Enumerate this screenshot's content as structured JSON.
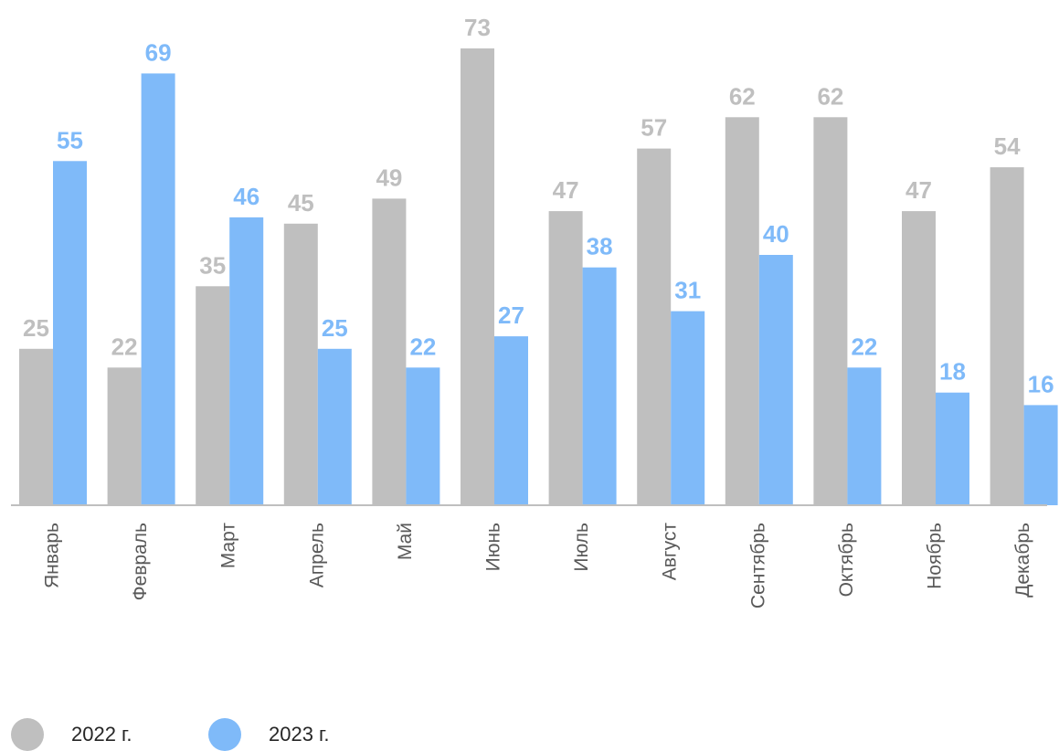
{
  "chart_data": {
    "type": "bar",
    "categories": [
      "Январь",
      "Февраль",
      "Март",
      "Апрель",
      "Май",
      "Июнь",
      "Июль",
      "Август",
      "Сентябрь",
      "Октябрь",
      "Ноябрь",
      "Декабрь"
    ],
    "series": [
      {
        "name": "2022 г.",
        "color": "#bfbfbf",
        "values": [
          25,
          22,
          35,
          45,
          49,
          73,
          47,
          57,
          62,
          62,
          47,
          54
        ]
      },
      {
        "name": "2023 г.",
        "color": "#7fbaf9",
        "values": [
          55,
          69,
          46,
          25,
          22,
          27,
          38,
          31,
          40,
          22,
          18,
          16
        ]
      }
    ],
    "ylim": [
      0,
      80
    ],
    "grid": false,
    "legend_position": "bottom-left",
    "data_labels": true
  }
}
